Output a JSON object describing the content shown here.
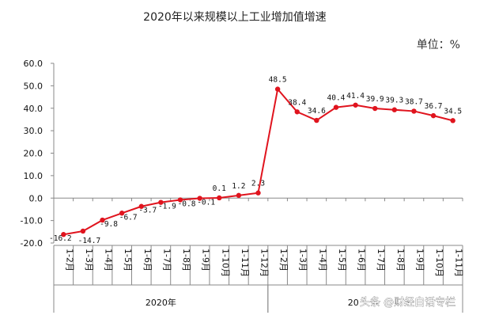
{
  "chart_data": {
    "type": "line",
    "title": "2020年以来规模以上工业增加值增速",
    "unit_label": "单位：%",
    "categories": [
      "1-2月",
      "1-3月",
      "1-4月",
      "1-5月",
      "1-6月",
      "1-7月",
      "1-8月",
      "1-9月",
      "1-10月",
      "1-11月",
      "1-12月",
      "1-2月",
      "1-3月",
      "1-4月",
      "1-5月",
      "1-6月",
      "1-7月",
      "1-8月",
      "1-9月",
      "1-10月",
      "1-11月"
    ],
    "series": [
      {
        "values": [
          -16.2,
          -14.7,
          -9.8,
          -6.7,
          -3.7,
          -1.9,
          -0.8,
          -0.1,
          0.1,
          1.2,
          2.3,
          48.5,
          38.4,
          34.6,
          40.4,
          41.4,
          39.9,
          39.3,
          38.7,
          36.7,
          34.5
        ],
        "labels": [
          "-16.2",
          "-14.7",
          "-9.8",
          "-6.7",
          "-3.7",
          "-1.9",
          "-0.8",
          "-0.1",
          "0.1",
          "1.2",
          "2.3",
          "48.5",
          "38.4",
          "34.6",
          "40.4",
          "41.4",
          "39.9",
          "39.3",
          "38.7",
          "36.7",
          "34.5"
        ],
        "color": "#e0141e"
      }
    ],
    "yticks": [
      "60.0",
      "50.0",
      "40.0",
      "30.0",
      "20.0",
      "10.0",
      "0.0",
      "-10.0",
      "-20.0"
    ],
    "ylim": [
      -20,
      60
    ],
    "year_groups": [
      {
        "label": "2020年",
        "start": 0,
        "end": 10
      },
      {
        "label": "20",
        "start": 11,
        "end": 20
      }
    ],
    "grid": false
  },
  "watermark": {
    "text": "头条 @财经白话专栏",
    "icon": "toutiao-logo-icon"
  }
}
